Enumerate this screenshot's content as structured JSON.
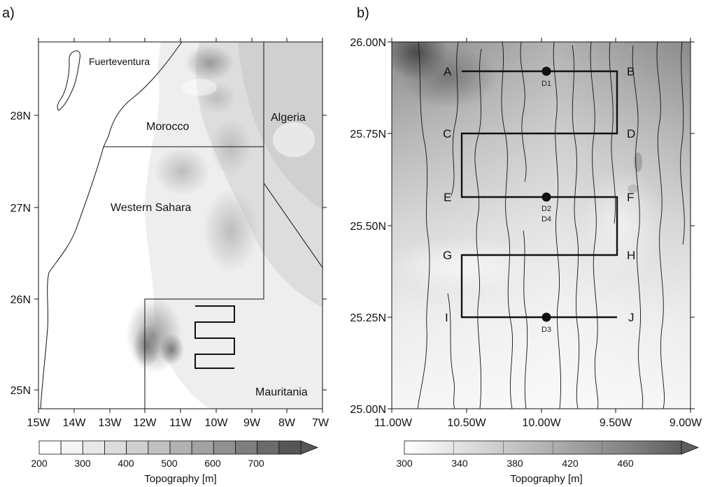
{
  "panel_a": {
    "label": "a)",
    "lat_ticks": [
      "28N",
      "27N",
      "26N",
      "25N"
    ],
    "lon_ticks": [
      "15W",
      "14W",
      "13W",
      "12W",
      "11W",
      "10W",
      "9W",
      "8W",
      "7W"
    ],
    "regions": {
      "fuerteventura": "Fuerteventura",
      "morocco": "Morocco",
      "algeria": "Algeria",
      "western_sahara": "Western Sahara",
      "mauritania": "Mauritania"
    },
    "colorbar": {
      "ticks": [
        "200",
        "300",
        "400",
        "500",
        "600",
        "700"
      ],
      "title": "Topography [m]"
    }
  },
  "panel_b": {
    "label": "b)",
    "lat_ticks": [
      "26.00N",
      "25.75N",
      "25.50N",
      "25.25N",
      "25.00N"
    ],
    "lon_ticks": [
      "11.00W",
      "10.50W",
      "10.00W",
      "9.50W",
      "9.00W"
    ],
    "waypoints": [
      "A",
      "B",
      "C",
      "D",
      "E",
      "F",
      "G",
      "H",
      "I",
      "J"
    ],
    "dropsondes": {
      "d1": "D1",
      "d2": "D2",
      "d4": "D4",
      "d3": "D3"
    },
    "colorbar": {
      "ticks": [
        "300",
        "340",
        "380",
        "420",
        "460"
      ],
      "title": "Topography [m]"
    }
  },
  "colors": {
    "colorbar_a": [
      "#ffffff",
      "#f4f4f4",
      "#e8e8e8",
      "#dcdcdc",
      "#cfcfcf",
      "#c1c1c1",
      "#b2b2b2",
      "#a2a2a2",
      "#919191",
      "#7f7f7f",
      "#6b6b6b",
      "#565656"
    ],
    "colorbar_b": [
      "#ffffff",
      "#e6e6e6",
      "#cdcdcd",
      "#b3b3b3",
      "#999999",
      "#7e7e7e",
      "#5e5e5e"
    ]
  }
}
